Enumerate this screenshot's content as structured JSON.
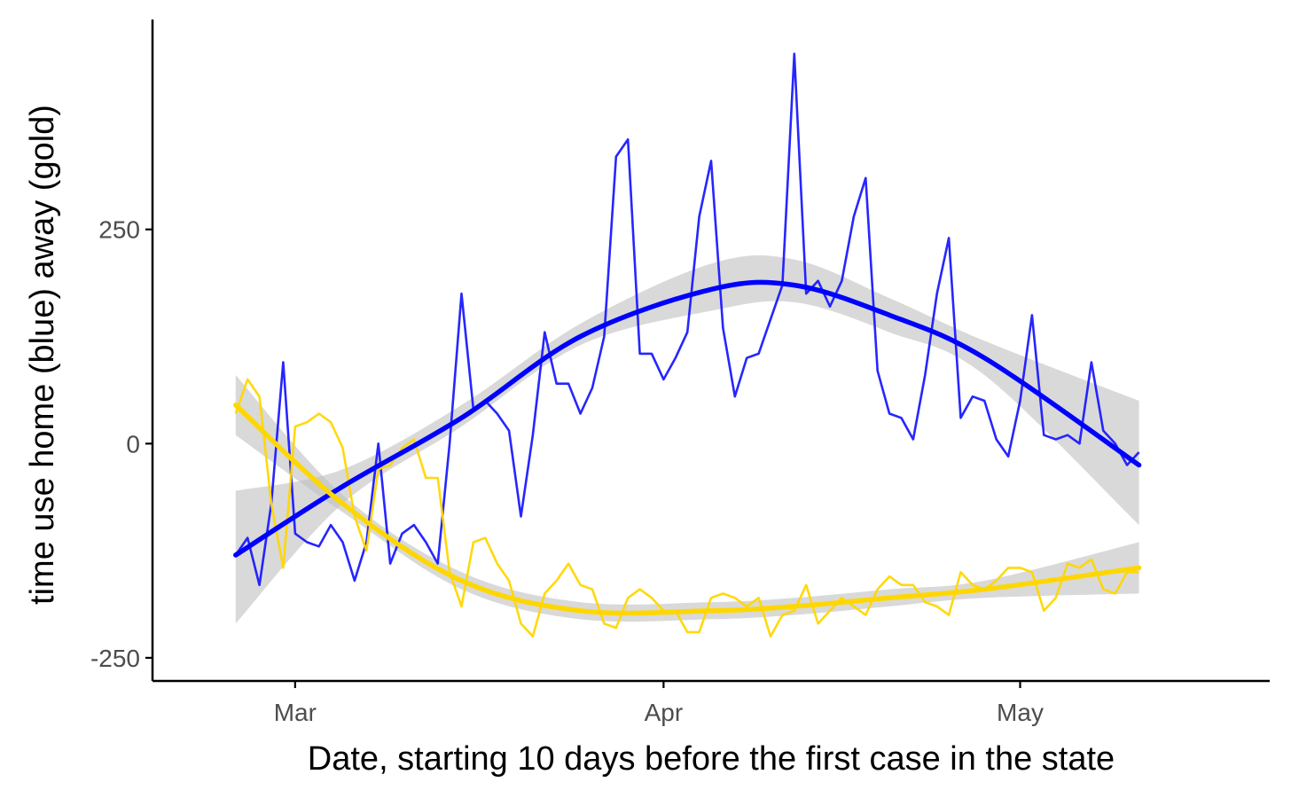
{
  "chart_data": {
    "type": "line",
    "title": "",
    "xlabel": "Date, starting 10 days before the first case in the state",
    "ylabel": "time use home (blue) away (gold)",
    "x_ticks": [
      {
        "date": "2020-03-01",
        "label": "Mar"
      },
      {
        "date": "2020-04-01",
        "label": "Apr"
      },
      {
        "date": "2020-05-01",
        "label": "May"
      }
    ],
    "y_ticks": [
      -250,
      0,
      250
    ],
    "xlim": [
      "2020-02-18",
      "2020-05-22"
    ],
    "ylim": [
      -277,
      495
    ],
    "grid": false,
    "legend": "none",
    "colors": {
      "home": "#1a1aff",
      "away": "#ffd700",
      "home_smooth": "#0000ff",
      "away_smooth": "#ffd700",
      "band": "#bfbfbf",
      "axis": "#000000",
      "tick_text": "#4d4d4d"
    },
    "series": [
      {
        "color": "#1a1aff",
        "x": [
          "2020-02-25",
          "2020-02-26",
          "2020-02-27",
          "2020-02-28",
          "2020-02-29",
          "2020-03-01",
          "2020-03-02",
          "2020-03-03",
          "2020-03-04",
          "2020-03-05",
          "2020-03-06",
          "2020-03-07",
          "2020-03-08",
          "2020-03-09",
          "2020-03-10",
          "2020-03-11",
          "2020-03-12",
          "2020-03-13",
          "2020-03-14",
          "2020-03-15",
          "2020-03-16",
          "2020-03-17",
          "2020-03-18",
          "2020-03-19",
          "2020-03-20",
          "2020-03-21",
          "2020-03-22",
          "2020-03-23",
          "2020-03-24",
          "2020-03-25",
          "2020-03-26",
          "2020-03-27",
          "2020-03-28",
          "2020-03-29",
          "2020-03-30",
          "2020-03-31",
          "2020-04-01",
          "2020-04-02",
          "2020-04-03",
          "2020-04-04",
          "2020-04-05",
          "2020-04-06",
          "2020-04-07",
          "2020-04-08",
          "2020-04-09",
          "2020-04-10",
          "2020-04-11",
          "2020-04-12",
          "2020-04-13",
          "2020-04-14",
          "2020-04-15",
          "2020-04-16",
          "2020-04-17",
          "2020-04-18",
          "2020-04-19",
          "2020-04-20",
          "2020-04-21",
          "2020-04-22",
          "2020-04-23",
          "2020-04-24",
          "2020-04-25",
          "2020-04-26",
          "2020-04-27",
          "2020-04-28",
          "2020-04-29",
          "2020-04-30",
          "2020-05-01",
          "2020-05-02",
          "2020-05-03",
          "2020-05-04",
          "2020-05-05",
          "2020-05-06",
          "2020-05-07",
          "2020-05-08",
          "2020-05-09",
          "2020-05-10",
          "2020-05-11"
        ],
        "values": [
          -130,
          -110,
          -165,
          -70,
          95,
          -105,
          -115,
          -120,
          -95,
          -115,
          -160,
          -115,
          0,
          -140,
          -105,
          -95,
          -115,
          -140,
          0,
          175,
          40,
          50,
          35,
          15,
          -85,
          10,
          130,
          70,
          70,
          35,
          65,
          125,
          335,
          355,
          105,
          105,
          75,
          100,
          130,
          265,
          330,
          135,
          55,
          100,
          105,
          145,
          185,
          455,
          175,
          190,
          160,
          190,
          265,
          310,
          85,
          35,
          30,
          5,
          80,
          175,
          240,
          30,
          55,
          50,
          5,
          -15,
          50,
          150,
          10,
          5,
          10,
          0,
          95,
          15,
          0,
          -25,
          -10
        ]
      },
      {
        "color": "#ffd700",
        "x": [
          "2020-02-25",
          "2020-02-26",
          "2020-02-27",
          "2020-02-28",
          "2020-02-29",
          "2020-03-01",
          "2020-03-02",
          "2020-03-03",
          "2020-03-04",
          "2020-03-05",
          "2020-03-06",
          "2020-03-07",
          "2020-03-08",
          "2020-03-09",
          "2020-03-10",
          "2020-03-11",
          "2020-03-12",
          "2020-03-13",
          "2020-03-14",
          "2020-03-15",
          "2020-03-16",
          "2020-03-17",
          "2020-03-18",
          "2020-03-19",
          "2020-03-20",
          "2020-03-21",
          "2020-03-22",
          "2020-03-23",
          "2020-03-24",
          "2020-03-25",
          "2020-03-26",
          "2020-03-27",
          "2020-03-28",
          "2020-03-29",
          "2020-03-30",
          "2020-03-31",
          "2020-04-01",
          "2020-04-02",
          "2020-04-03",
          "2020-04-04",
          "2020-04-05",
          "2020-04-06",
          "2020-04-07",
          "2020-04-08",
          "2020-04-09",
          "2020-04-10",
          "2020-04-11",
          "2020-04-12",
          "2020-04-13",
          "2020-04-14",
          "2020-04-15",
          "2020-04-16",
          "2020-04-17",
          "2020-04-18",
          "2020-04-19",
          "2020-04-20",
          "2020-04-21",
          "2020-04-22",
          "2020-04-23",
          "2020-04-24",
          "2020-04-25",
          "2020-04-26",
          "2020-04-27",
          "2020-04-28",
          "2020-04-29",
          "2020-04-30",
          "2020-05-01",
          "2020-05-02",
          "2020-05-03",
          "2020-05-04",
          "2020-05-05",
          "2020-05-06",
          "2020-05-07",
          "2020-05-08",
          "2020-05-09",
          "2020-05-10",
          "2020-05-11"
        ],
        "values": [
          35,
          75,
          55,
          -70,
          -145,
          20,
          25,
          35,
          25,
          -5,
          -85,
          -125,
          -30,
          -25,
          -5,
          5,
          -40,
          -40,
          -150,
          -190,
          -115,
          -110,
          -140,
          -160,
          -210,
          -225,
          -175,
          -160,
          -140,
          -165,
          -170,
          -210,
          -215,
          -180,
          -170,
          -180,
          -195,
          -195,
          -220,
          -220,
          -180,
          -175,
          -180,
          -190,
          -180,
          -225,
          -200,
          -195,
          -165,
          -210,
          -195,
          -180,
          -190,
          -200,
          -170,
          -155,
          -165,
          -165,
          -185,
          -190,
          -200,
          -150,
          -165,
          -170,
          -160,
          -145,
          -145,
          -150,
          -195,
          -180,
          -140,
          -145,
          -135,
          -170,
          -175,
          -150,
          -150
        ]
      }
    ],
    "smooth": [
      {
        "color": "#0000ff",
        "x": [
          "2020-02-25",
          "2020-03-05",
          "2020-03-15",
          "2020-03-25",
          "2020-04-05",
          "2020-04-12",
          "2020-04-20",
          "2020-04-28",
          "2020-05-11"
        ],
        "values": [
          -130,
          -50,
          30,
          125,
          180,
          185,
          150,
          100,
          -25
        ],
        "band_lower": [
          -210,
          -70,
          20,
          115,
          155,
          165,
          130,
          80,
          -95
        ],
        "band_upper": [
          -55,
          -30,
          45,
          140,
          210,
          215,
          170,
          120,
          50
        ]
      },
      {
        "color": "#ffd700",
        "x": [
          "2020-02-25",
          "2020-03-05",
          "2020-03-15",
          "2020-03-25",
          "2020-04-05",
          "2020-04-12",
          "2020-04-20",
          "2020-04-28",
          "2020-05-11"
        ],
        "values": [
          45,
          -70,
          -160,
          -195,
          -195,
          -190,
          -180,
          -170,
          -145
        ],
        "band_lower": [
          10,
          -80,
          -170,
          -205,
          -205,
          -200,
          -190,
          -180,
          -175
        ],
        "band_upper": [
          80,
          -60,
          -150,
          -185,
          -185,
          -180,
          -170,
          -160,
          -115
        ]
      }
    ]
  }
}
